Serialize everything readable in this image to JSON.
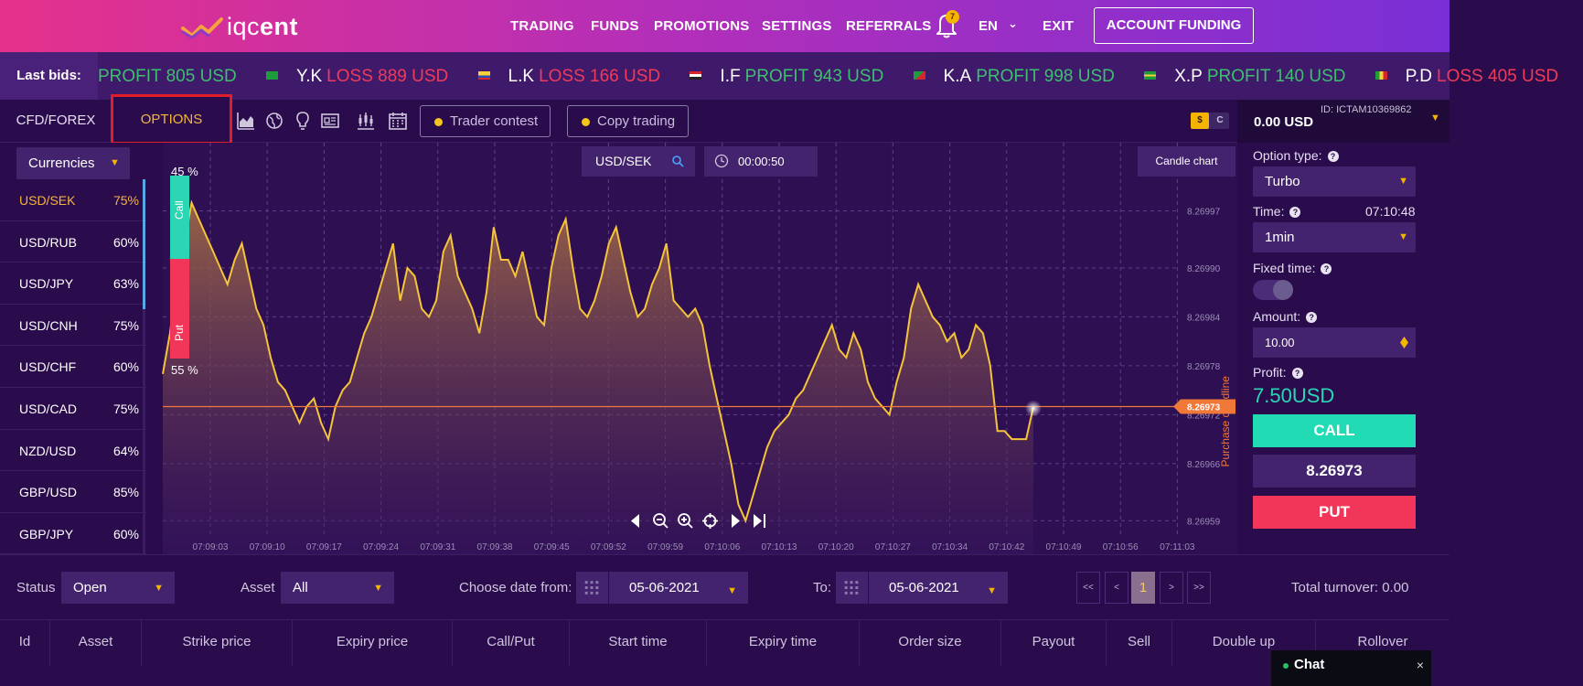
{
  "header": {
    "logo_text_light": "iqc",
    "logo_text_bold": "ent",
    "nav": [
      "TRADING",
      "FUNDS",
      "PROMOTIONS",
      "SETTINGS",
      "REFERRALS"
    ],
    "notification_count": "7",
    "language": "EN",
    "exit": "EXIT",
    "account_funding": "ACCOUNT FUNDING"
  },
  "ticker": {
    "label": "Last bids:",
    "items": [
      {
        "name": "",
        "type": "PROFIT",
        "amount": "PROFIT 805 USD"
      },
      {
        "name": "Y.K",
        "type": "LOSS",
        "amount": "LOSS 889 USD"
      },
      {
        "name": "L.K",
        "type": "LOSS",
        "amount": "LOSS 166 USD"
      },
      {
        "name": "I.F",
        "type": "PROFIT",
        "amount": "PROFIT 943 USD"
      },
      {
        "name": "K.A",
        "type": "PROFIT",
        "amount": "PROFIT 998 USD"
      },
      {
        "name": "X.P",
        "type": "PROFIT",
        "amount": "PROFIT 140 USD"
      },
      {
        "name": "P.D",
        "type": "LOSS",
        "amount": "LOSS 405 USD"
      }
    ]
  },
  "toolbar": {
    "tab_cfd": "CFD/FOREX",
    "tab_options": "OPTIONS",
    "trader_contest": "Trader contest",
    "copy_trading": "Copy trading",
    "currency_dollar": "$",
    "currency_cent": "C"
  },
  "account": {
    "id": "ID: ICTAM10369862",
    "balance": "0.00 USD"
  },
  "sidebar": {
    "category": "Currencies",
    "assets": [
      {
        "name": "USD/SEK",
        "pct": "75%"
      },
      {
        "name": "USD/RUB",
        "pct": "60%"
      },
      {
        "name": "USD/JPY",
        "pct": "63%"
      },
      {
        "name": "USD/CNH",
        "pct": "75%"
      },
      {
        "name": "USD/CHF",
        "pct": "60%"
      },
      {
        "name": "USD/CAD",
        "pct": "75%"
      },
      {
        "name": "NZD/USD",
        "pct": "64%"
      },
      {
        "name": "GBP/USD",
        "pct": "85%"
      },
      {
        "name": "GBP/JPY",
        "pct": "60%"
      }
    ]
  },
  "chart": {
    "symbol": "USD/SEK",
    "timer": "00:00:50",
    "chart_type_button": "Candle chart",
    "call_label": "Call",
    "put_label": "Put",
    "call_pct": "45 %",
    "put_pct": "55 %",
    "purchase_line_label": "Purchase deadline",
    "current_price_tag": "8.26973"
  },
  "chart_data": {
    "type": "area",
    "ylim": [
      8.26956,
      8.27002
    ],
    "y_ticks": [
      "8.26997",
      "8.26990",
      "8.26984",
      "8.26978",
      "8.26972",
      "8.26966",
      "8.26959"
    ],
    "x_ticks": [
      "07:09:03",
      "07:09:10",
      "07:09:17",
      "07:09:24",
      "07:09:31",
      "07:09:38",
      "07:09:45",
      "07:09:52",
      "07:09:59",
      "07:10:06",
      "07:10:13",
      "07:10:20",
      "07:10:27",
      "07:10:34",
      "07:10:42",
      "07:10:49",
      "07:10:56",
      "07:11:03"
    ],
    "x_start_seconds": 0,
    "current_price": 8.26973,
    "series": [
      {
        "values": [
          8.26977,
          8.26982,
          8.26989,
          8.26993,
          8.26998,
          8.26996,
          8.26994,
          8.26992,
          8.2699,
          8.26988,
          8.26991,
          8.26993,
          8.26989,
          8.26985,
          8.26983,
          8.26979,
          8.26976,
          8.26975,
          8.26973,
          8.26971,
          8.26973,
          8.26974,
          8.26971,
          8.26969,
          8.26973,
          8.26975,
          8.26976,
          8.26979,
          8.26982,
          8.26984,
          8.26987,
          8.2699,
          8.26993,
          8.26986,
          8.2699,
          8.26989,
          8.26985,
          8.26984,
          8.26986,
          8.26992,
          8.26994,
          8.26989,
          8.26987,
          8.26985,
          8.26982,
          8.26987,
          8.26995,
          8.26991,
          8.26991,
          8.26989,
          8.26992,
          8.26988,
          8.26984,
          8.26983,
          8.2699,
          8.26994,
          8.26996,
          8.2699,
          8.26985,
          8.26984,
          8.26986,
          8.26989,
          8.26993,
          8.26995,
          8.26991,
          8.26987,
          8.26984,
          8.26985,
          8.26988,
          8.2699,
          8.26993,
          8.26986,
          8.26985,
          8.26984,
          8.26985,
          8.26983,
          8.26978,
          8.26974,
          8.2697,
          8.26966,
          8.26961,
          8.26959,
          8.26962,
          8.26965,
          8.26968,
          8.2697,
          8.26971,
          8.26972,
          8.26974,
          8.26975,
          8.26977,
          8.26979,
          8.26981,
          8.26983,
          8.2698,
          8.26979,
          8.26982,
          8.2698,
          8.26976,
          8.26974,
          8.26973,
          8.26972,
          8.26976,
          8.26979,
          8.26985,
          8.26988,
          8.26986,
          8.26984,
          8.26983,
          8.26981,
          8.26982,
          8.26979,
          8.2698,
          8.26983,
          8.26982,
          8.26978,
          8.2697,
          8.2697,
          8.26969,
          8.26969,
          8.26969,
          8.26973
        ]
      }
    ]
  },
  "controls": {
    "option_type_label": "Option type:",
    "option_type_value": "Turbo",
    "time_label": "Time:",
    "clock": "07:10:48",
    "time_value": "1min",
    "fixed_time_label": "Fixed time:",
    "amount_label": "Amount:",
    "amount_value": "10.00",
    "profit_label": "Profit:",
    "profit_value": "7.50USD",
    "call_button": "CALL",
    "price": "8.26973",
    "put_button": "PUT"
  },
  "filters": {
    "status_label": "Status",
    "status_value": "Open",
    "asset_label": "Asset",
    "asset_value": "All",
    "date_from_label": "Choose date from:",
    "date_from": "05-06-2021",
    "to_label": "To:",
    "date_to": "05-06-2021",
    "pager": [
      "<<",
      "<",
      "1",
      ">",
      ">>"
    ],
    "total_turnover": "Total turnover: 0.00"
  },
  "table": {
    "columns": [
      "Id",
      "Asset",
      "Strike price",
      "Expiry price",
      "Call/Put",
      "Start time",
      "Expiry time",
      "Order size",
      "Payout",
      "Sell",
      "Double up",
      "Rollover"
    ]
  },
  "chat": {
    "label": "Chat",
    "close": "×"
  }
}
